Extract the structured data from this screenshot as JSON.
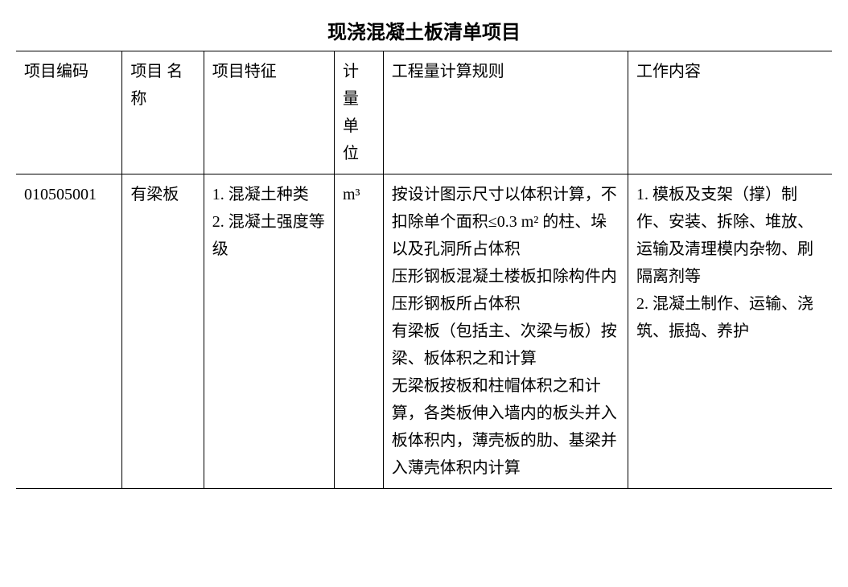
{
  "title": "现浇混凝土板清单项目",
  "table": {
    "headers": {
      "code": "项目编码",
      "name": "项目 名称",
      "feature": "项目特征",
      "unit": "计量单位",
      "rule": "工程量计算规则",
      "work": "工作内容"
    },
    "rows": [
      {
        "code": "010505001",
        "name": "有梁板",
        "feature": "1. 混凝土种类\n2. 混凝土强度等级",
        "unit": "m³",
        "rule": "按设计图示尺寸以体积计算，不扣除单个面积≤0.3 m² 的柱、垛以及孔洞所占体积\n压形钢板混凝土楼板扣除构件内压形钢板所占体积\n有梁板（包括主、次梁与板）按梁、板体积之和计算\n无梁板按板和柱帽体积之和计算，各类板伸入墙内的板头并入板体积内，薄壳板的肋、基梁并入薄壳体积内计算",
        "work": "1. 模板及支架（撑）制作、安装、拆除、堆放、运输及清理模内杂物、刷隔离剂等\n2. 混凝土制作、运输、浇筑、振捣、养护"
      }
    ]
  },
  "style": {
    "background_color": "#ffffff",
    "text_color": "#000000",
    "border_color": "#000000",
    "title_fontsize": 24,
    "cell_fontsize": 20,
    "line_height": 1.7,
    "col_widths_pct": [
      13,
      10,
      16,
      6,
      30,
      25
    ]
  }
}
